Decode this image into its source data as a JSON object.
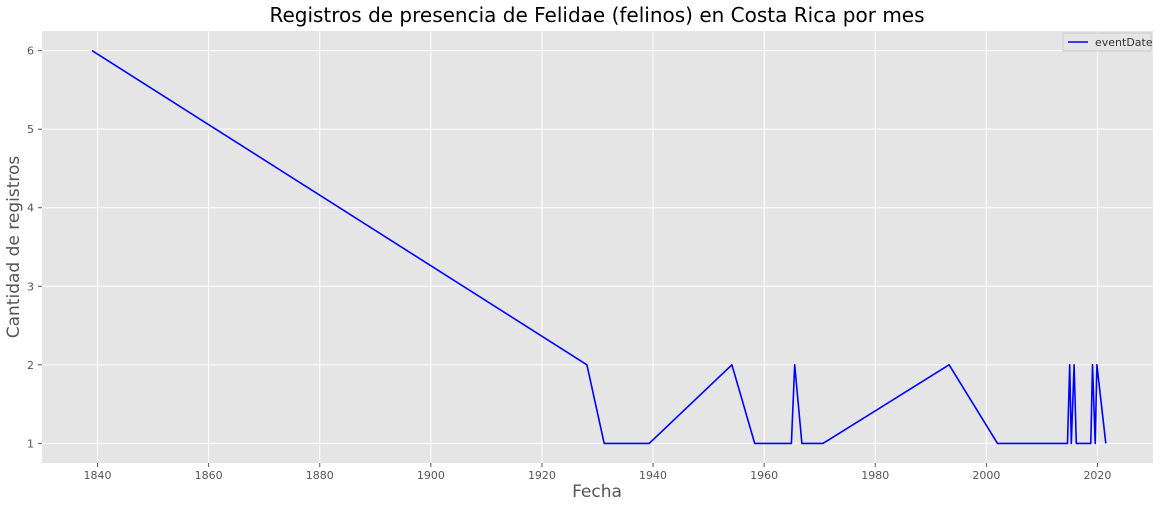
{
  "chart_data": {
    "type": "line",
    "title": "Registros de presencia de Felidae (felinos) en Costa Rica por mes",
    "xlabel": "Fecha",
    "ylabel": "Cantidad de registros",
    "xlim": [
      1830,
      2030
    ],
    "ylim": [
      0.75,
      6.25
    ],
    "x_ticks": [
      1840,
      1860,
      1880,
      1900,
      1920,
      1940,
      1960,
      1980,
      2000,
      2020
    ],
    "y_ticks": [
      1,
      2,
      3,
      4,
      5,
      6
    ],
    "grid": true,
    "legend_position": "top-right",
    "colors": {
      "background": "#e5e5e5",
      "grid": "#ffffff",
      "line": "#0000ff"
    },
    "series": [
      {
        "name": "eventDate",
        "color": "#0000ff",
        "x": [
          1839.0,
          1928.1,
          1931.2,
          1939.3,
          1954.2,
          1958.3,
          1964.9,
          1965.5,
          1966.8,
          1970.6,
          1993.3,
          2002.0,
          2014.6,
          2015.0,
          2015.3,
          2015.8,
          2016.2,
          2018.8,
          2019.1,
          2019.6,
          2019.9,
          2021.5
        ],
        "y": [
          6,
          2,
          1,
          1,
          2,
          1,
          1,
          2,
          1,
          1,
          2,
          1,
          1,
          2,
          1,
          2,
          1,
          1,
          2,
          1,
          2,
          1
        ]
      }
    ]
  }
}
